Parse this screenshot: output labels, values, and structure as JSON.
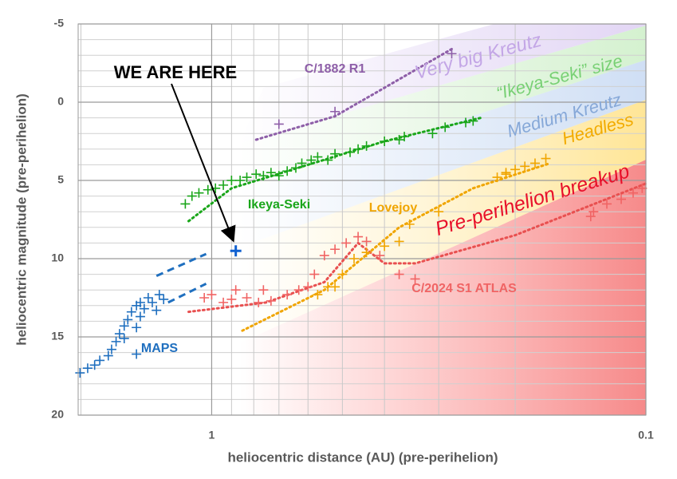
{
  "chart_data": {
    "type": "scatter",
    "x_label": "heliocentric distance (AU) (pre-perihelion)",
    "y_label": "heliocentric magnitude (pre-perihelion)",
    "xscale": "log",
    "xlim": [
      2.03,
      0.1
    ],
    "ylim": [
      20,
      -5
    ],
    "xticks": [
      1,
      0.1
    ],
    "xminor": [
      2,
      0.9,
      0.8,
      0.7,
      0.6,
      0.5,
      0.4,
      0.3,
      0.2
    ],
    "yticks": [
      -5,
      0,
      5,
      10,
      15,
      20
    ],
    "yminor": [
      -4,
      -3,
      -2,
      -1,
      1,
      2,
      3,
      4,
      6,
      7,
      8,
      9,
      11,
      12,
      13,
      14,
      16,
      17,
      18,
      19
    ],
    "grid": true,
    "series": [
      {
        "name": "MAPS",
        "color": "#1f6fbf",
        "x": [
          2.01,
          1.93,
          1.86,
          1.81,
          1.73,
          1.7,
          1.66,
          1.63,
          1.59,
          1.56,
          1.53,
          1.49,
          1.46,
          1.43,
          1.4,
          1.37,
          1.32,
          1.29,
          1.49,
          1.59,
          1.46,
          1.34,
          1.49
        ],
        "y": [
          17.3,
          17.0,
          16.8,
          16.5,
          16.2,
          15.8,
          15.3,
          14.8,
          14.3,
          13.9,
          13.4,
          13.0,
          12.8,
          13.2,
          12.5,
          12.8,
          12.3,
          12.6,
          14.4,
          15.1,
          13.7,
          13.3,
          16.1
        ]
      },
      {
        "name": "Ikeya-Seki",
        "color": "#1aa61a",
        "x": [
          1.15,
          1.11,
          1.07,
          1.02,
          0.98,
          0.94,
          0.9,
          0.86,
          0.83,
          0.79,
          0.76,
          0.73,
          0.7,
          0.67,
          0.64,
          0.62,
          0.59,
          0.57,
          0.54,
          0.52,
          0.48,
          0.44,
          0.4,
          0.36,
          0.31,
          0.26,
          0.25,
          0.46,
          0.37,
          0.29
        ],
        "y": [
          6.5,
          6.0,
          5.8,
          5.6,
          5.5,
          5.3,
          5.0,
          5.0,
          4.8,
          4.6,
          4.7,
          4.5,
          4.7,
          4.4,
          4.2,
          3.9,
          3.7,
          3.5,
          3.7,
          3.3,
          3.2,
          2.8,
          2.5,
          2.2,
          2.0,
          1.3,
          1.2,
          3.0,
          2.4,
          1.6
        ]
      },
      {
        "name": "Lovejoy",
        "color": "#f0a500",
        "x": [
          0.57,
          0.54,
          0.52,
          0.5,
          0.47,
          0.44,
          0.4,
          0.37,
          0.35,
          0.3,
          0.22,
          0.21,
          0.21,
          0.2,
          0.19,
          0.18,
          0.17
        ],
        "y": [
          12.3,
          11.8,
          11.8,
          11.0,
          10.0,
          9.6,
          9.2,
          8.9,
          7.8,
          7.0,
          4.8,
          4.6,
          4.5,
          4.3,
          4.1,
          3.9,
          3.6
        ]
      },
      {
        "name": "C/2024 S1 ATLAS",
        "color": "#f06464",
        "x": [
          1.04,
          1.0,
          0.94,
          0.88,
          0.83,
          0.78,
          0.73,
          0.67,
          0.63,
          0.6,
          0.58,
          0.55,
          0.52,
          0.49,
          0.46,
          0.44,
          0.41,
          0.37,
          0.34,
          0.134,
          0.123,
          0.114,
          0.107,
          0.102,
          0.132,
          0.76,
          0.9
        ],
        "y": [
          12.5,
          12.3,
          12.8,
          12.0,
          12.5,
          12.8,
          12.7,
          12.3,
          12.0,
          11.8,
          11.0,
          9.8,
          9.4,
          9.0,
          8.6,
          8.9,
          9.8,
          11.0,
          11.3,
          7.3,
          6.5,
          6.2,
          5.8,
          5.5,
          7.0,
          12.0,
          12.6
        ]
      },
      {
        "name": "C/1882 R1",
        "color": "#8e5fa8",
        "x": [
          0.7,
          0.52,
          0.28
        ],
        "y": [
          1.4,
          0.6,
          -3.1
        ]
      }
    ],
    "trends": [
      {
        "color": "#1f6fbf",
        "style": "dashed",
        "x": [
          1.34,
          1.03,
          null,
          1.26,
          1.03
        ],
        "y": [
          11.1,
          9.7,
          null,
          12.8,
          11.6
        ]
      },
      {
        "color": "#8e5fa8",
        "style": "dotted",
        "x": [
          0.79,
          0.52,
          0.28
        ],
        "y": [
          2.4,
          0.9,
          -3.4
        ]
      },
      {
        "color": "#1aa61a",
        "style": "dotted",
        "x": [
          1.13,
          0.9,
          0.6,
          0.4,
          0.24
        ],
        "y": [
          7.6,
          5.5,
          4.0,
          2.5,
          1.0
        ]
      },
      {
        "color": "#f0a500",
        "style": "dotted",
        "x": [
          0.85,
          0.55,
          0.37,
          0.25,
          0.166
        ],
        "y": [
          14.6,
          12.0,
          8.0,
          5.5,
          3.9
        ]
      },
      {
        "color": "#e85050",
        "style": "dotted",
        "x": [
          1.13,
          0.75,
          0.55,
          0.46,
          0.4,
          0.34,
          0.2,
          0.1
        ],
        "y": [
          13.4,
          12.8,
          11.5,
          9.0,
          10.3,
          10.3,
          8.5,
          5.2
        ]
      }
    ],
    "bands": [
      {
        "label": "Very big Kreutz",
        "color": "#c3a6e6"
      },
      {
        "label": "“Ikeya-Seki” size",
        "color": "#78d074"
      },
      {
        "label": "Medium Kreutz",
        "color": "#86a8d8"
      },
      {
        "label": "Headless",
        "color": "#f2ab00"
      },
      {
        "label": "Pre-perihelion breakup",
        "color": "#e8102a"
      }
    ],
    "current": {
      "text": "WE ARE HERE",
      "color": "#1060d0",
      "x": 0.88,
      "y": 9.5
    }
  }
}
